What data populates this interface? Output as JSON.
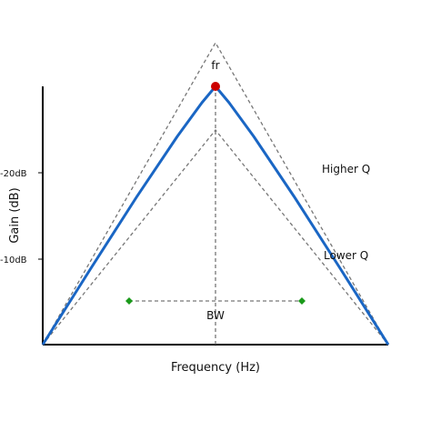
{
  "labels": {
    "peak": "fr",
    "higher_q": "Higher Q",
    "lower_q": "Lower Q",
    "bandwidth": "BW",
    "y_tick_upper": "-20dB",
    "y_tick_lower": "-10dB",
    "x_axis": "Frequency (Hz)",
    "y_axis": "Gain (dB)"
  },
  "colors": {
    "response_curve": "#1a66c4",
    "envelope": "#777777",
    "peak_marker": "#cc0000",
    "bandwidth_marker": "#1a9a1a",
    "axis": "#000000"
  }
}
